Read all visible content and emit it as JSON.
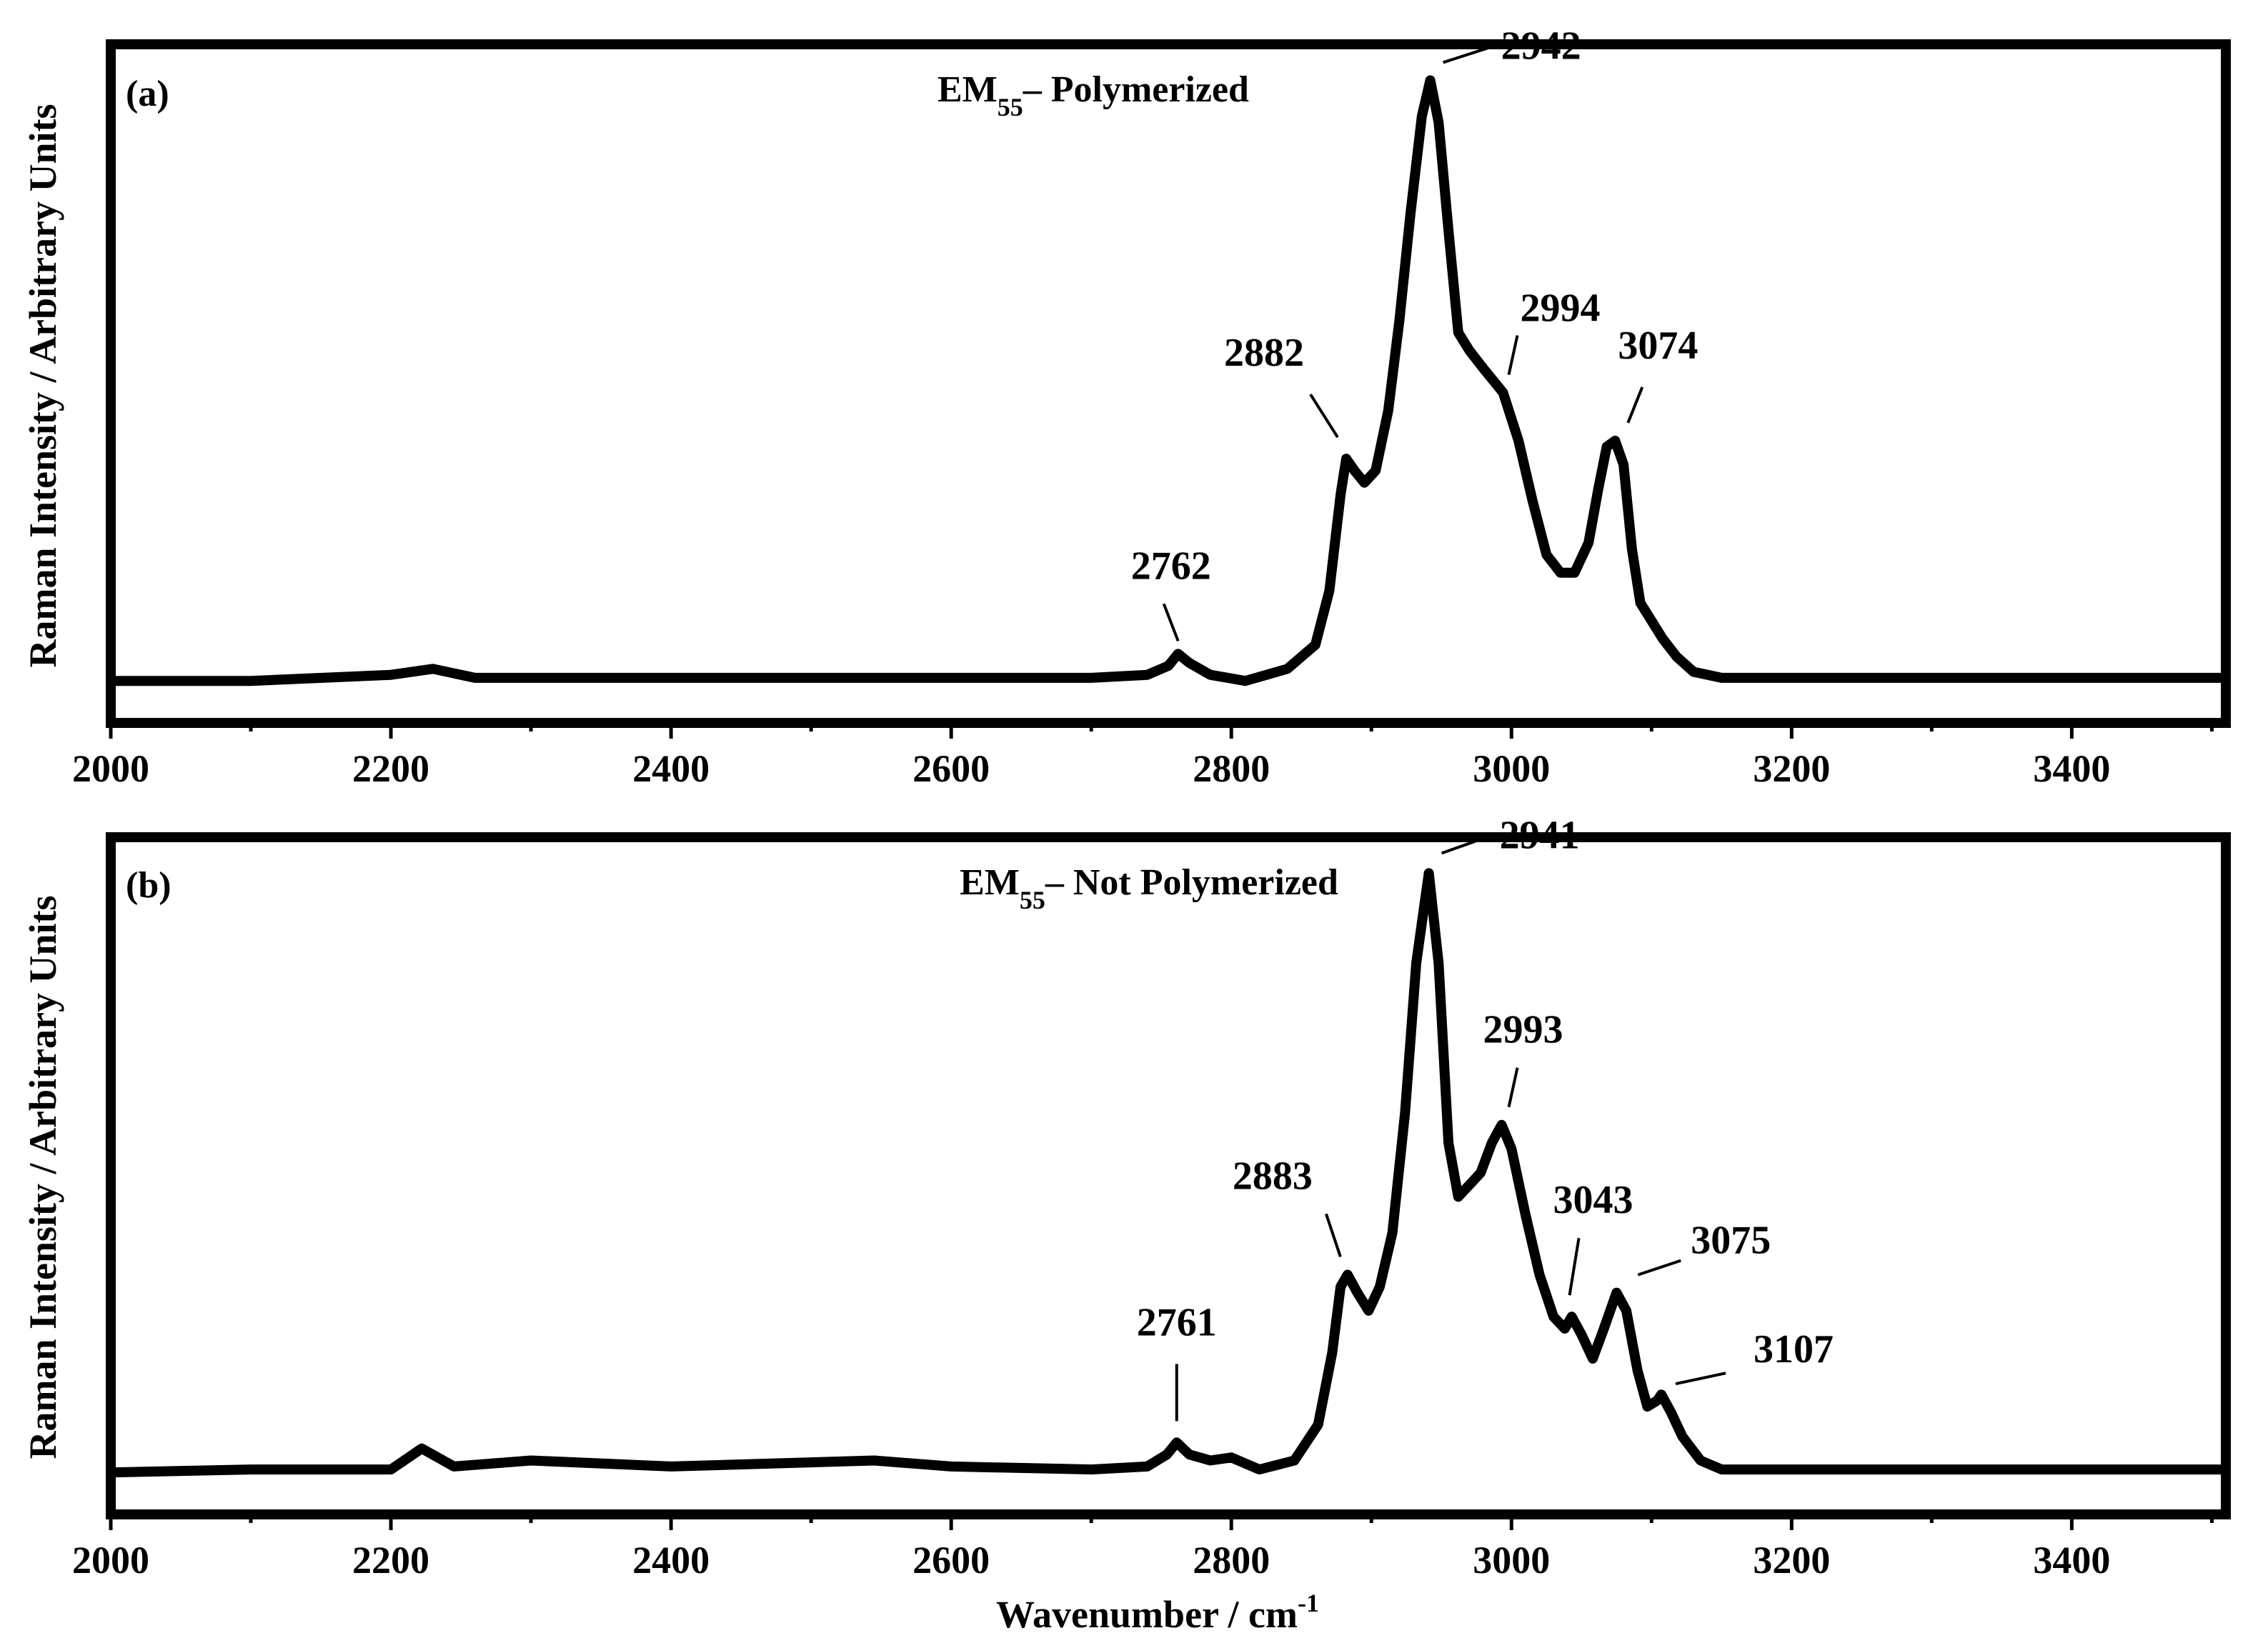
{
  "chart_data": [
    {
      "type": "line",
      "panel_label": "(a)",
      "title": "EM",
      "title_subscript": "55",
      "title_suffix": "– Polymerized",
      "xlabel": "",
      "ylabel": "Raman Intensity / Arbitrary Units",
      "xlim": [
        2000,
        3510
      ],
      "ylim": [
        -0.07,
        1.06
      ],
      "xticks": [
        2000,
        2200,
        2400,
        2600,
        2800,
        3000,
        3200,
        3400
      ],
      "xtick_labels": [
        "2000",
        "2200",
        "2400",
        "2600",
        "2800",
        "3000",
        "3200",
        "3400"
      ],
      "y_tick_labels": false,
      "series": [
        {
          "color": "#000000",
          "x": [
            2000,
            2100,
            2200,
            2230,
            2260,
            2400,
            2600,
            2700,
            2740,
            2755,
            2762,
            2770,
            2785,
            2810,
            2840,
            2860,
            2870,
            2878,
            2882,
            2888,
            2895,
            2903,
            2912,
            2920,
            2928,
            2936,
            2942,
            2948,
            2955,
            2962,
            2970,
            2980,
            2994,
            3005,
            3015,
            3025,
            3035,
            3045,
            3055,
            3062,
            3068,
            3074,
            3080,
            3086,
            3092,
            3100,
            3108,
            3118,
            3130,
            3150,
            3200,
            3300,
            3400,
            3510
          ],
          "y": [
            0.0,
            0.0,
            0.01,
            0.02,
            0.005,
            0.005,
            0.005,
            0.005,
            0.01,
            0.025,
            0.045,
            0.03,
            0.01,
            0.0,
            0.02,
            0.06,
            0.15,
            0.31,
            0.37,
            0.35,
            0.33,
            0.35,
            0.45,
            0.6,
            0.78,
            0.94,
            1.0,
            0.93,
            0.75,
            0.58,
            0.55,
            0.52,
            0.48,
            0.4,
            0.3,
            0.21,
            0.18,
            0.18,
            0.23,
            0.32,
            0.39,
            0.4,
            0.36,
            0.22,
            0.13,
            0.1,
            0.07,
            0.04,
            0.015,
            0.005,
            0.005,
            0.005,
            0.005,
            0.005
          ]
        }
      ],
      "annotations": [
        {
          "text": "2762",
          "x": 2762
        },
        {
          "text": "2882",
          "x": 2882
        },
        {
          "text": "2942",
          "x": 2942
        },
        {
          "text": "2994",
          "x": 2994
        },
        {
          "text": "3074",
          "x": 3074
        }
      ]
    },
    {
      "type": "line",
      "panel_label": "(b)",
      "title": "EM",
      "title_subscript": "55",
      "title_suffix": "– Not Polymerized",
      "xlabel": "Wavenumber / cm",
      "xlabel_superscript": "-1",
      "ylabel": "Raman Intensity / Arbitrary Units",
      "xlim": [
        2000,
        3510
      ],
      "ylim": [
        -0.07,
        1.06
      ],
      "xticks": [
        2000,
        2200,
        2400,
        2600,
        2800,
        3000,
        3200,
        3400
      ],
      "xtick_labels": [
        "2000",
        "2200",
        "2400",
        "2600",
        "2800",
        "3000",
        "3200",
        "3400"
      ],
      "y_tick_labels": false,
      "series": [
        {
          "color": "#000000",
          "x": [
            2000,
            2100,
            2200,
            2222,
            2245,
            2300,
            2400,
            2545,
            2600,
            2700,
            2740,
            2754,
            2761,
            2770,
            2785,
            2800,
            2820,
            2845,
            2862,
            2872,
            2878,
            2883,
            2890,
            2898,
            2906,
            2915,
            2924,
            2932,
            2941,
            2948,
            2955,
            2962,
            2970,
            2978,
            2986,
            2993,
            3000,
            3010,
            3020,
            3030,
            3038,
            3043,
            3050,
            3058,
            3066,
            3075,
            3082,
            3090,
            3097,
            3104,
            3107,
            3114,
            3122,
            3135,
            3150,
            3200,
            3300,
            3400,
            3510
          ],
          "y": [
            0.0,
            0.005,
            0.005,
            0.04,
            0.01,
            0.02,
            0.01,
            0.02,
            0.01,
            0.005,
            0.01,
            0.03,
            0.05,
            0.03,
            0.02,
            0.025,
            0.005,
            0.02,
            0.08,
            0.2,
            0.31,
            0.33,
            0.3,
            0.27,
            0.31,
            0.4,
            0.6,
            0.85,
            1.0,
            0.85,
            0.55,
            0.46,
            0.48,
            0.5,
            0.55,
            0.58,
            0.54,
            0.43,
            0.33,
            0.26,
            0.24,
            0.26,
            0.23,
            0.19,
            0.24,
            0.3,
            0.27,
            0.17,
            0.11,
            0.12,
            0.13,
            0.1,
            0.06,
            0.02,
            0.005,
            0.005,
            0.005,
            0.005,
            0.005
          ]
        }
      ],
      "annotations": [
        {
          "text": "2761",
          "x": 2761
        },
        {
          "text": "2883",
          "x": 2883
        },
        {
          "text": "2941",
          "x": 2941
        },
        {
          "text": "2993",
          "x": 2993
        },
        {
          "text": "3043",
          "x": 3043
        },
        {
          "text": "3075",
          "x": 3075
        },
        {
          "text": "3107",
          "x": 3107
        }
      ]
    }
  ]
}
